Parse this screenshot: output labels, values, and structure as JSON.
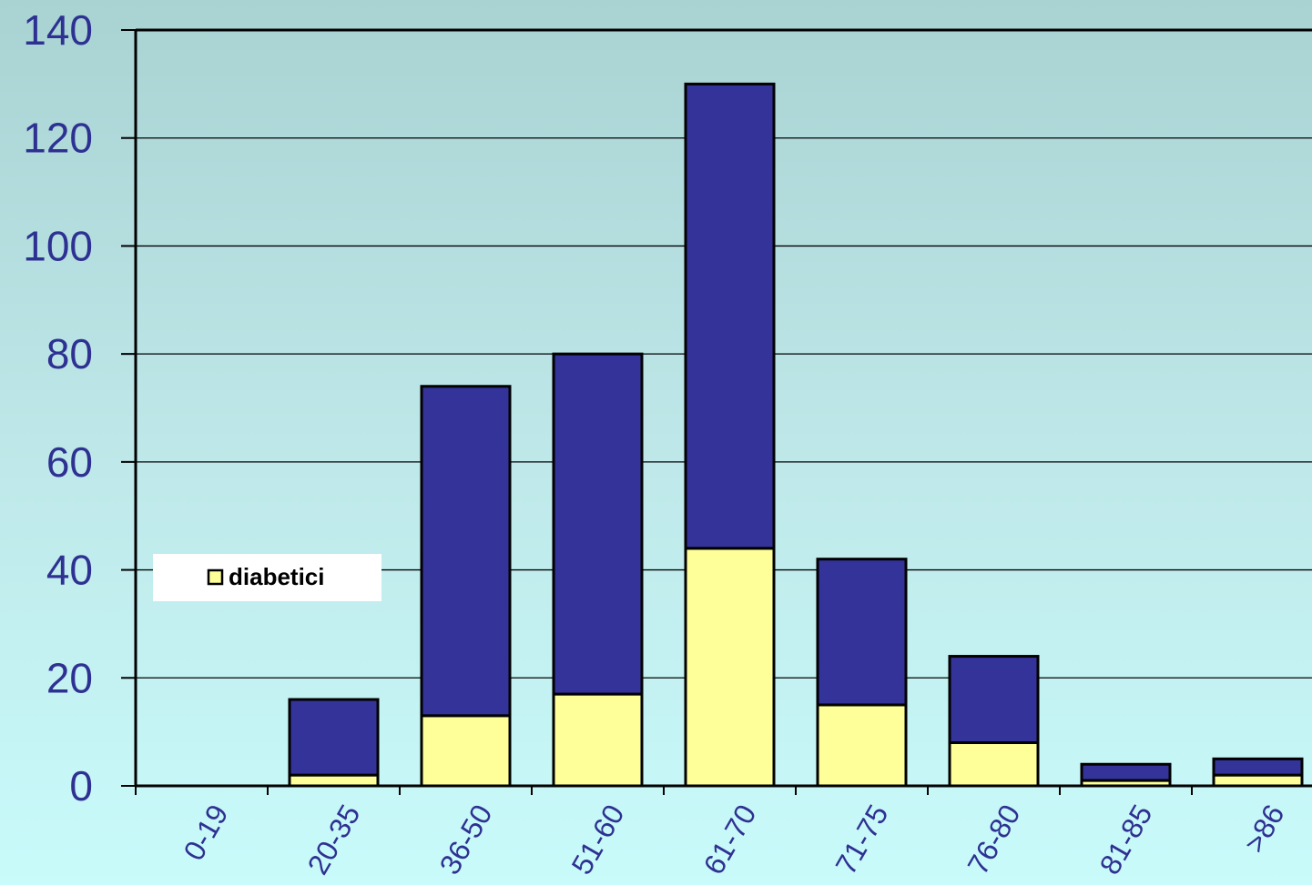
{
  "chart_data": {
    "type": "bar",
    "stacked": true,
    "categories": [
      "0-19",
      "20-35",
      "36-50",
      "51-60",
      "61-70",
      "71-75",
      "76-80",
      "81-85",
      ">86"
    ],
    "series": [
      {
        "name": "diabetici",
        "values": [
          0,
          2,
          13,
          17,
          44,
          15,
          8,
          1,
          2
        ],
        "color": "#ffff99"
      },
      {
        "values": [
          0,
          14,
          61,
          63,
          86,
          27,
          16,
          3,
          3
        ],
        "color": "#333399"
      }
    ],
    "totals": [
      0,
      16,
      74,
      80,
      130,
      42,
      24,
      4,
      5
    ],
    "ylim": [
      0,
      140
    ],
    "yticks": [
      "0",
      "20",
      "40",
      "60",
      "80",
      "100",
      "120",
      "140"
    ],
    "grid": true,
    "legend": {
      "position": "left-middle",
      "items": [
        "diabetici"
      ]
    },
    "colors": {
      "axis_text": "#2e3192",
      "grid": "#000000",
      "legend_bg": "#ffffff"
    }
  }
}
